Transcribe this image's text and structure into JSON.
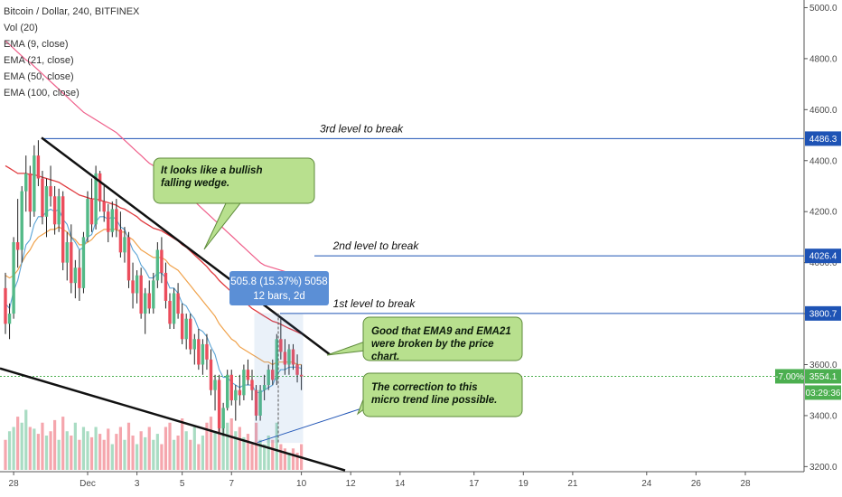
{
  "title": "Bitcoin / Dollar, 240, BITFINEX",
  "indicators": [
    "Vol (20)",
    "EMA (9, close)",
    "EMA (21, close)",
    "EMA (50, close)",
    "EMA (100, close)"
  ],
  "colors": {
    "up": "#53b987",
    "down": "#eb4d5c",
    "level": "#1e53b5",
    "ema9": "#5ba4d6",
    "ema21": "#f0a24b",
    "ema50": "#e03a3e",
    "ema100": "#ef5f8a",
    "note_fill": "#b8e08e",
    "note_stroke": "#5d8a3a",
    "measure": "#5b8fd6",
    "current": "#4caf50"
  },
  "chart_data": {
    "type": "candlestick",
    "ylim": [
      3180,
      5030
    ],
    "y_ticks": [
      {
        "v": 5000,
        "label": "5000.0"
      },
      {
        "v": 4800,
        "label": "4800.0"
      },
      {
        "v": 4600,
        "label": "4600.0"
      },
      {
        "v": 4400,
        "label": "4400.0"
      },
      {
        "v": 4200,
        "label": "4200.0"
      },
      {
        "v": 4000,
        "label": "4000.0"
      },
      {
        "v": 3800,
        "label": "3800.0"
      },
      {
        "v": 3600,
        "label": "3600.0"
      },
      {
        "v": 3400,
        "label": "3400.0"
      },
      {
        "v": 3200,
        "label": "3200.0"
      }
    ],
    "x_ticks": [
      {
        "bar": 2,
        "label": "28"
      },
      {
        "bar": 20,
        "label": "Dec"
      },
      {
        "bar": 32,
        "label": "3"
      },
      {
        "bar": 43,
        "label": "5"
      },
      {
        "bar": 55,
        "label": "7"
      },
      {
        "bar": 72,
        "label": "10"
      },
      {
        "bar": 84,
        "label": "12"
      },
      {
        "bar": 96,
        "label": "14"
      },
      {
        "bar": 114,
        "label": "17"
      },
      {
        "bar": 126,
        "label": "19"
      },
      {
        "bar": 138,
        "label": "21"
      },
      {
        "bar": 156,
        "label": "24"
      },
      {
        "bar": 168,
        "label": "26"
      },
      {
        "bar": 180,
        "label": "28"
      }
    ],
    "candles": [
      [
        3900,
        3960,
        3720,
        3760
      ],
      [
        3760,
        3840,
        3700,
        3800
      ],
      [
        3800,
        4100,
        3780,
        4080
      ],
      [
        4080,
        4250,
        3980,
        4050
      ],
      [
        4050,
        4300,
        4000,
        4280
      ],
      [
        4280,
        4420,
        4200,
        4350
      ],
      [
        4350,
        4380,
        4140,
        4200
      ],
      [
        4200,
        4460,
        4180,
        4420
      ],
      [
        4420,
        4480,
        4300,
        4330
      ],
      [
        4330,
        4360,
        4150,
        4180
      ],
      [
        4180,
        4330,
        4100,
        4300
      ],
      [
        4300,
        4380,
        4220,
        4260
      ],
      [
        4260,
        4300,
        4110,
        4150
      ],
      [
        4150,
        4290,
        4120,
        4260
      ],
      [
        4260,
        4280,
        3970,
        4000
      ],
      [
        4000,
        4120,
        3930,
        4080
      ],
      [
        4080,
        4150,
        3880,
        3920
      ],
      [
        3920,
        4010,
        3860,
        3980
      ],
      [
        3980,
        4050,
        3850,
        3900
      ],
      [
        3900,
        4120,
        3880,
        4100
      ],
      [
        4100,
        4280,
        4080,
        4250
      ],
      [
        4250,
        4330,
        4120,
        4150
      ],
      [
        4150,
        4380,
        4130,
        4350
      ],
      [
        4350,
        4360,
        4200,
        4240
      ],
      [
        4240,
        4300,
        4160,
        4200
      ],
      [
        4200,
        4230,
        4080,
        4120
      ],
      [
        4120,
        4240,
        4100,
        4210
      ],
      [
        4210,
        4250,
        4100,
        4130
      ],
      [
        4130,
        4200,
        4020,
        4040
      ],
      [
        4040,
        4140,
        4000,
        4100
      ],
      [
        4100,
        4120,
        3900,
        3930
      ],
      [
        3930,
        4000,
        3820,
        3880
      ],
      [
        3880,
        3970,
        3840,
        3950
      ],
      [
        3950,
        3980,
        3780,
        3800
      ],
      [
        3800,
        3900,
        3720,
        3880
      ],
      [
        3880,
        3930,
        3800,
        3820
      ],
      [
        3820,
        3960,
        3800,
        3930
      ],
      [
        3930,
        4080,
        3900,
        4050
      ],
      [
        4050,
        4100,
        3920,
        3960
      ],
      [
        3960,
        4000,
        3820,
        3850
      ],
      [
        3850,
        3880,
        3740,
        3760
      ],
      [
        3760,
        3900,
        3740,
        3880
      ],
      [
        3880,
        3920,
        3780,
        3800
      ],
      [
        3800,
        3840,
        3680,
        3700
      ],
      [
        3700,
        3800,
        3660,
        3780
      ],
      [
        3780,
        3800,
        3640,
        3660
      ],
      [
        3660,
        3720,
        3600,
        3700
      ],
      [
        3700,
        3740,
        3580,
        3600
      ],
      [
        3600,
        3700,
        3560,
        3680
      ],
      [
        3680,
        3720,
        3580,
        3620
      ],
      [
        3620,
        3660,
        3480,
        3500
      ],
      [
        3500,
        3560,
        3420,
        3540
      ],
      [
        3540,
        3560,
        3330,
        3350
      ],
      [
        3350,
        3450,
        3320,
        3430
      ],
      [
        3430,
        3580,
        3420,
        3560
      ],
      [
        3560,
        3580,
        3440,
        3460
      ],
      [
        3460,
        3520,
        3380,
        3500
      ],
      [
        3500,
        3560,
        3440,
        3480
      ],
      [
        3480,
        3600,
        3460,
        3580
      ],
      [
        3580,
        3620,
        3520,
        3540
      ],
      [
        3540,
        3580,
        3460,
        3500
      ],
      [
        3500,
        3520,
        3380,
        3400
      ],
      [
        3400,
        3520,
        3380,
        3500
      ],
      [
        3500,
        3560,
        3460,
        3520
      ],
      [
        3520,
        3600,
        3500,
        3580
      ],
      [
        3580,
        3620,
        3520,
        3540
      ],
      [
        3540,
        3720,
        3520,
        3700
      ],
      [
        3700,
        3780,
        3620,
        3650
      ],
      [
        3650,
        3700,
        3560,
        3600
      ],
      [
        3600,
        3680,
        3560,
        3660
      ],
      [
        3660,
        3680,
        3580,
        3600
      ],
      [
        3600,
        3640,
        3530,
        3560
      ],
      [
        3560,
        3600,
        3500,
        3554
      ]
    ],
    "volumes": [
      0.35,
      0.45,
      0.5,
      0.62,
      0.55,
      0.7,
      0.5,
      0.48,
      0.42,
      0.55,
      0.4,
      0.45,
      0.58,
      0.35,
      0.62,
      0.45,
      0.4,
      0.55,
      0.35,
      0.5,
      0.45,
      0.38,
      0.5,
      0.42,
      0.35,
      0.48,
      0.3,
      0.42,
      0.5,
      0.35,
      0.55,
      0.4,
      0.3,
      0.45,
      0.38,
      0.5,
      0.35,
      0.42,
      0.3,
      0.5,
      0.55,
      0.35,
      0.4,
      0.6,
      0.45,
      0.35,
      0.5,
      0.3,
      0.4,
      0.55,
      0.62,
      0.45,
      0.95,
      0.72,
      0.55,
      0.6,
      0.45,
      0.5,
      0.38,
      0.42,
      0.3,
      0.55,
      0.35,
      0.3,
      0.4,
      0.35,
      0.55,
      0.3,
      0.25,
      0.2,
      0.25,
      0.2,
      0.3
    ],
    "ema9": [
      3840,
      3820,
      3890,
      3930,
      4000,
      4070,
      4090,
      4150,
      4180,
      4180,
      4200,
      4210,
      4200,
      4210,
      4170,
      4150,
      4100,
      4080,
      4050,
      4060,
      4100,
      4110,
      4160,
      4180,
      4180,
      4170,
      4180,
      4170,
      4140,
      4130,
      4090,
      4050,
      4030,
      3990,
      3970,
      3940,
      3940,
      3960,
      3960,
      3940,
      3900,
      3900,
      3880,
      3840,
      3830,
      3800,
      3780,
      3740,
      3730,
      3710,
      3670,
      3640,
      3580,
      3550,
      3550,
      3530,
      3520,
      3510,
      3520,
      3520,
      3520,
      3490,
      3490,
      3500,
      3510,
      3520,
      3560,
      3580,
      3580,
      3590,
      3590,
      3590,
      3585
    ],
    "ema21": [
      3950,
      3940,
      3950,
      3970,
      4000,
      4030,
      4050,
      4080,
      4100,
      4110,
      4120,
      4130,
      4130,
      4140,
      4130,
      4120,
      4100,
      4090,
      4070,
      4070,
      4080,
      4090,
      4110,
      4120,
      4130,
      4130,
      4130,
      4130,
      4120,
      4120,
      4100,
      4090,
      4070,
      4050,
      4040,
      4030,
      4020,
      4020,
      4020,
      4010,
      3990,
      3980,
      3970,
      3950,
      3930,
      3910,
      3890,
      3870,
      3850,
      3830,
      3810,
      3790,
      3760,
      3740,
      3720,
      3700,
      3690,
      3670,
      3660,
      3650,
      3640,
      3630,
      3620,
      3610,
      3610,
      3600,
      3610,
      3610,
      3610,
      3610,
      3610,
      3600,
      3600
    ],
    "ema50": [
      4380,
      4370,
      4360,
      4350,
      4350,
      4350,
      4345,
      4345,
      4340,
      4335,
      4330,
      4325,
      4320,
      4315,
      4305,
      4295,
      4285,
      4275,
      4265,
      4260,
      4255,
      4250,
      4250,
      4245,
      4240,
      4235,
      4230,
      4225,
      4215,
      4210,
      4200,
      4190,
      4180,
      4165,
      4155,
      4145,
      4135,
      4130,
      4125,
      4115,
      4105,
      4095,
      4085,
      4070,
      4060,
      4045,
      4030,
      4015,
      4000,
      3985,
      3965,
      3950,
      3930,
      3915,
      3900,
      3885,
      3870,
      3855,
      3845,
      3835,
      3820,
      3810,
      3800,
      3790,
      3780,
      3770,
      3765,
      3758,
      3750,
      3742,
      3735,
      3728,
      3720
    ],
    "ema100": [
      4870,
      4855,
      4840,
      4825,
      4810,
      4795,
      4785,
      4770,
      4755,
      4740,
      4725,
      4710,
      4695,
      4680,
      4665,
      4650,
      4635,
      4620,
      4605,
      4590,
      4580,
      4570,
      4560,
      4550,
      4540,
      4530,
      4520,
      4510,
      4495,
      4480,
      4465,
      4450,
      4435,
      4420,
      4405,
      4390,
      4380,
      4370,
      4360,
      4345,
      4330,
      4315,
      4300,
      4285,
      4270,
      4255,
      4240,
      4225,
      4210,
      4195,
      4180,
      4165,
      4150,
      4135,
      4120,
      4105,
      4090,
      4075,
      4060,
      4045,
      4030,
      4015,
      4000,
      3990,
      3985,
      3980,
      3975,
      3970,
      3965,
      3960,
      3955,
      3950,
      3945
    ],
    "levels": [
      {
        "price": 4486.3,
        "label": "3rd level to break",
        "tag": "4486.3"
      },
      {
        "price": 4026.4,
        "label": "2nd level to break",
        "tag": "4026.4"
      },
      {
        "price": 3800.7,
        "label": "1st level to break",
        "tag": "3800.7"
      }
    ],
    "current_price": {
      "price": 3554.1,
      "tag": "3554.1",
      "change": "-7.00%",
      "countdown": "03:29:36"
    },
    "annotations": [
      "It looks like a bullish falling wedge.",
      "Good that EMA9 and EMA21 were broken by the price chart.",
      "The correction to this micro trend line possible."
    ],
    "measure": {
      "line1": "505.8 (15.37%) 5058",
      "line2": "12 bars, 2d"
    }
  }
}
